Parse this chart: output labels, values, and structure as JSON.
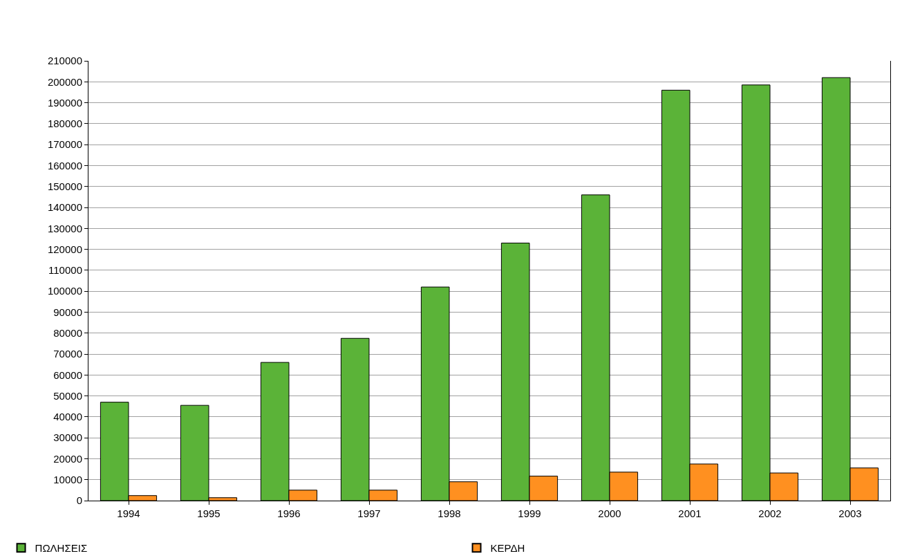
{
  "chart_data": {
    "type": "bar",
    "categories": [
      "1994",
      "1995",
      "1996",
      "1997",
      "1998",
      "1999",
      "2000",
      "2001",
      "2002",
      "2003"
    ],
    "series": [
      {
        "name": "ΠΩΛΗΣΕΙΣ",
        "color": "#5bb338",
        "values": [
          47000,
          45500,
          66000,
          77500,
          102000,
          123000,
          146000,
          196000,
          198500,
          202000
        ]
      },
      {
        "name": "ΚΕΡΔΗ",
        "color": "#ff9020",
        "values": [
          2400,
          1400,
          5000,
          5000,
          9000,
          11700,
          13600,
          17500,
          13200,
          15600
        ]
      }
    ],
    "ylim": [
      0,
      210000
    ],
    "yticks": [
      0,
      10000,
      20000,
      30000,
      40000,
      50000,
      60000,
      70000,
      80000,
      90000,
      100000,
      110000,
      120000,
      130000,
      140000,
      150000,
      160000,
      170000,
      180000,
      190000,
      200000,
      210000
    ],
    "grid": "y",
    "legend": "bottom"
  }
}
